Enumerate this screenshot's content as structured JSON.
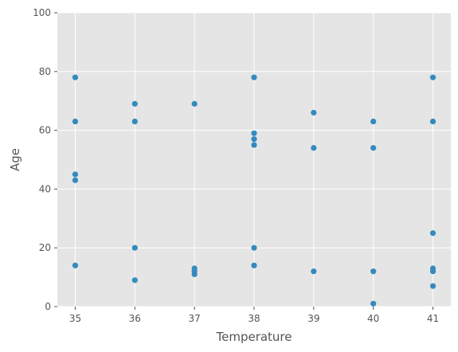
{
  "chart_data": {
    "type": "scatter",
    "title": "",
    "xlabel": "Temperature",
    "ylabel": "Age",
    "xlim": [
      34.7,
      41.3
    ],
    "ylim": [
      0,
      100
    ],
    "xticks": [
      35,
      36,
      37,
      38,
      39,
      40,
      41
    ],
    "yticks": [
      0,
      20,
      40,
      60,
      80,
      100
    ],
    "grid": true,
    "background": "#E5E5E5",
    "grid_color": "#FFFFFF",
    "marker_color": "#348ABD",
    "points": [
      {
        "x": 35,
        "y": 78
      },
      {
        "x": 35,
        "y": 63
      },
      {
        "x": 35,
        "y": 45
      },
      {
        "x": 35,
        "y": 43
      },
      {
        "x": 35,
        "y": 14
      },
      {
        "x": 36,
        "y": 69
      },
      {
        "x": 36,
        "y": 63
      },
      {
        "x": 36,
        "y": 20
      },
      {
        "x": 36,
        "y": 9
      },
      {
        "x": 37,
        "y": 69
      },
      {
        "x": 37,
        "y": 13
      },
      {
        "x": 37,
        "y": 12
      },
      {
        "x": 37,
        "y": 11
      },
      {
        "x": 38,
        "y": 78
      },
      {
        "x": 38,
        "y": 59
      },
      {
        "x": 38,
        "y": 57
      },
      {
        "x": 38,
        "y": 55
      },
      {
        "x": 38,
        "y": 20
      },
      {
        "x": 38,
        "y": 14
      },
      {
        "x": 39,
        "y": 66
      },
      {
        "x": 39,
        "y": 54
      },
      {
        "x": 39,
        "y": 12
      },
      {
        "x": 40,
        "y": 63
      },
      {
        "x": 40,
        "y": 54
      },
      {
        "x": 40,
        "y": 12
      },
      {
        "x": 40,
        "y": 1
      },
      {
        "x": 41,
        "y": 78
      },
      {
        "x": 41,
        "y": 63
      },
      {
        "x": 41,
        "y": 25
      },
      {
        "x": 41,
        "y": 13
      },
      {
        "x": 41,
        "y": 12
      },
      {
        "x": 41,
        "y": 7
      }
    ]
  }
}
